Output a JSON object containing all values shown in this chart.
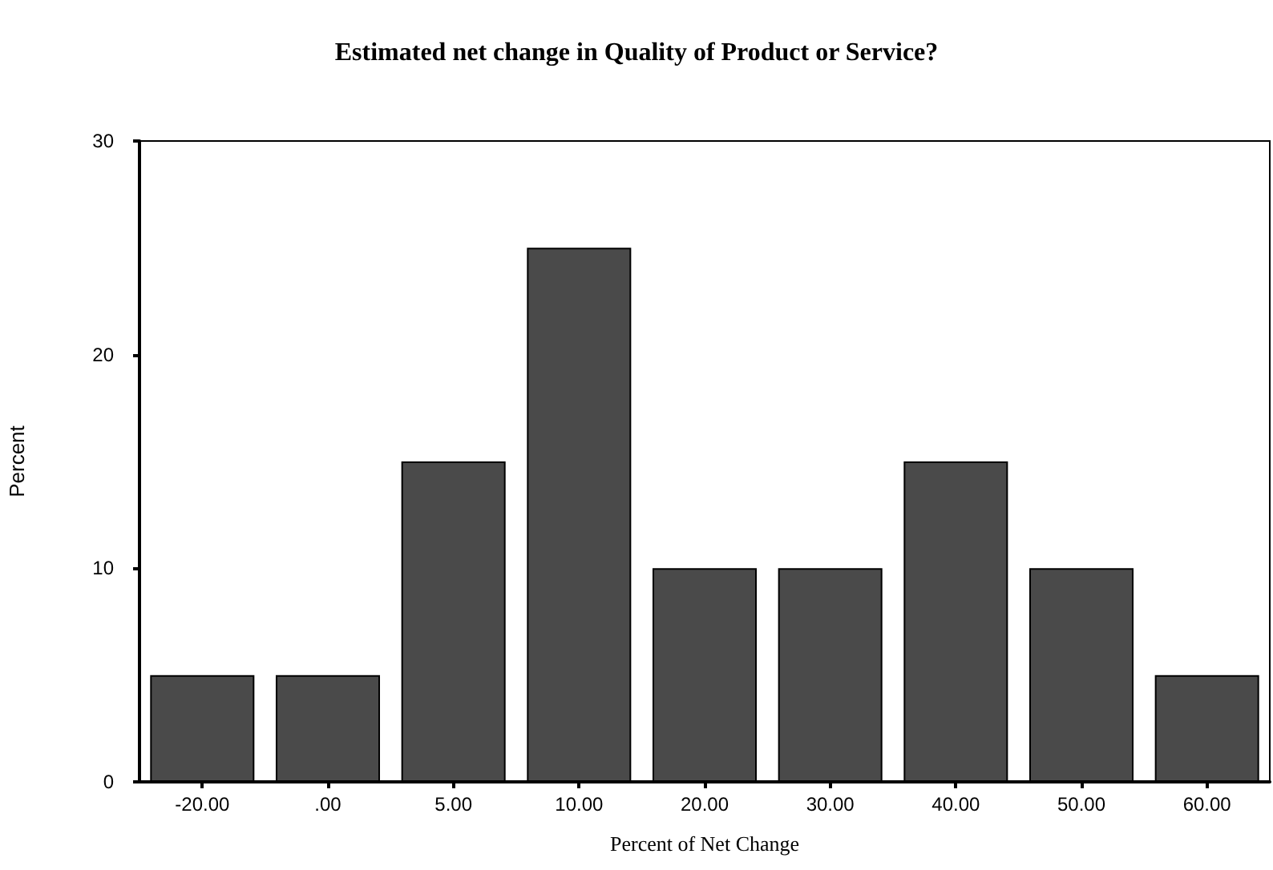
{
  "chart_data": {
    "type": "bar",
    "title": "Estimated net change in Quality of Product or Service?",
    "xlabel": "Percent of Net Change",
    "ylabel": "Percent",
    "categories": [
      "-20.00",
      ".00",
      "5.00",
      "10.00",
      "20.00",
      "30.00",
      "40.00",
      "50.00",
      "60.00"
    ],
    "values": [
      5,
      5,
      15,
      25,
      10,
      10,
      15,
      10,
      5
    ],
    "color": "#4a4a4a",
    "ylim": [
      0,
      30
    ],
    "yticks": [
      0,
      10,
      20,
      30
    ],
    "grid": false
  }
}
